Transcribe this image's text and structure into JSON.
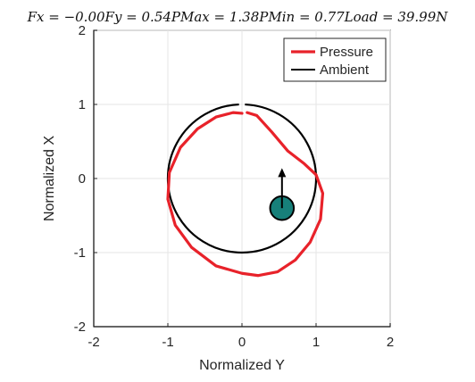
{
  "chart_data": {
    "type": "line",
    "title": "F_x = −0.00F_y = 0.54P_Max = 1.38P_Min = 0.77Load = 39.99N",
    "title_text": "Fx = −0.00Fy = 0.54PMax = 1.38PMin = 0.77Load = 39.99N",
    "xlabel": "Normalized Y",
    "ylabel": "Normalized X",
    "xlim": [
      -2,
      2
    ],
    "ylim": [
      -2,
      2
    ],
    "x_ticks": [
      "-2",
      "-1",
      "0",
      "1",
      "2"
    ],
    "y_ticks": [
      "-2",
      "-1",
      "0",
      "1",
      "2"
    ],
    "grid": true,
    "legend": {
      "placement": "top-right",
      "entries": [
        "Pressure",
        "Ambient"
      ]
    },
    "colors": {
      "pressure": "#e8222a",
      "ambient": "#000000",
      "marker_fill": "#17807a",
      "grid": "#e6e6e6"
    },
    "series": [
      {
        "name": "Pressure",
        "color": "#e8222a",
        "points": [
          [
            0.0,
            0.88
          ],
          [
            -0.12,
            0.89
          ],
          [
            -0.35,
            0.83
          ],
          [
            -0.6,
            0.67
          ],
          [
            -0.83,
            0.42
          ],
          [
            -0.98,
            0.08
          ],
          [
            -1.0,
            -0.28
          ],
          [
            -0.9,
            -0.63
          ],
          [
            -0.68,
            -0.93
          ],
          [
            -0.35,
            -1.18
          ],
          [
            0.0,
            -1.28
          ],
          [
            0.22,
            -1.31
          ],
          [
            0.48,
            -1.26
          ],
          [
            0.72,
            -1.1
          ],
          [
            0.92,
            -0.86
          ],
          [
            1.06,
            -0.55
          ],
          [
            1.09,
            -0.2
          ],
          [
            1.0,
            0.05
          ],
          [
            0.84,
            0.2
          ],
          [
            0.62,
            0.37
          ],
          [
            0.4,
            0.63
          ],
          [
            0.2,
            0.85
          ],
          [
            0.07,
            0.89
          ]
        ],
        "closed": false
      },
      {
        "name": "Ambient",
        "color": "#000000",
        "shape": "circle",
        "center": [
          0,
          0
        ],
        "radius": 1.0,
        "gap_at_top": true
      }
    ],
    "marker": {
      "type": "circle",
      "center": [
        0.54,
        -0.4
      ],
      "radius": 0.16
    },
    "arrow": {
      "from": [
        0.54,
        -0.4
      ],
      "to": [
        0.54,
        0.14
      ]
    }
  }
}
